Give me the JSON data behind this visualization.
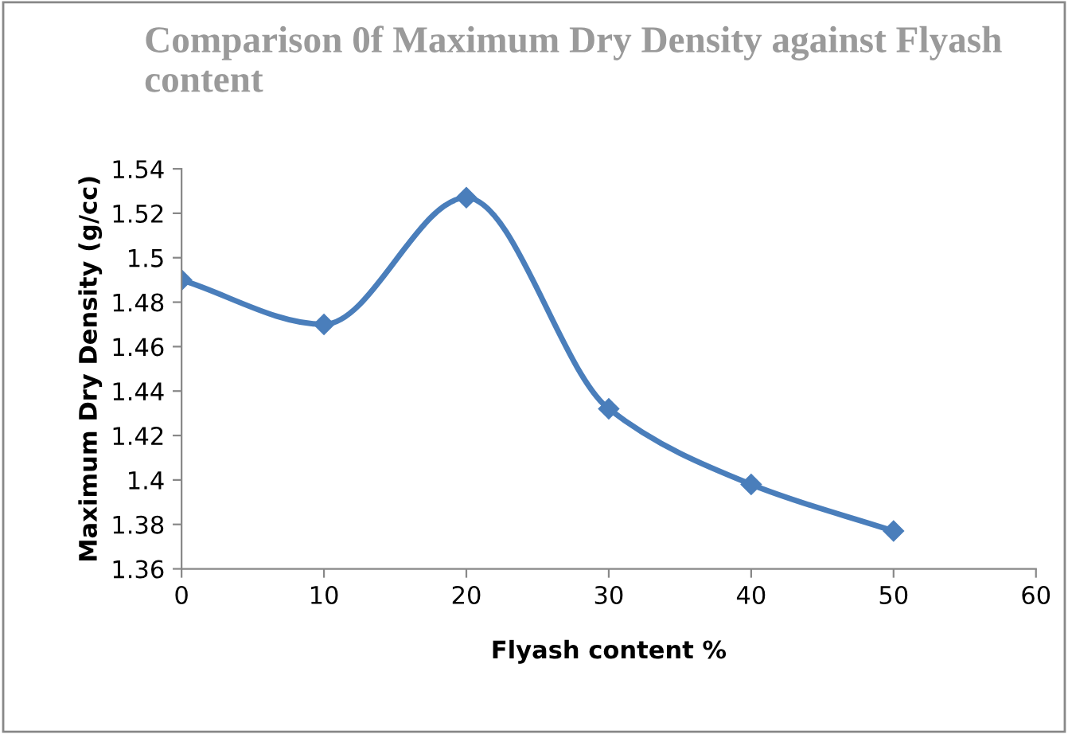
{
  "chart_data": {
    "type": "line",
    "title": "Comparison 0f Maximum Dry Density against Flyash content",
    "xlabel": "Flyash content %",
    "ylabel": "Maximum Dry Density (g/cc)",
    "x": [
      0,
      10,
      20,
      30,
      40,
      50
    ],
    "series": [
      {
        "color": "#4a7ebb",
        "values": [
          1.49,
          1.47,
          1.527,
          1.432,
          1.398,
          1.377
        ]
      }
    ],
    "xlim": [
      0,
      60
    ],
    "xticks": [
      0,
      10,
      20,
      30,
      40,
      50,
      60
    ],
    "ylim": [
      1.36,
      1.54
    ],
    "yticks": [
      1.36,
      1.38,
      1.4,
      1.42,
      1.44,
      1.46,
      1.48,
      1.5,
      1.52,
      1.54
    ],
    "marker": "diamond",
    "line_style": "solid",
    "grid": false,
    "legend": false
  }
}
